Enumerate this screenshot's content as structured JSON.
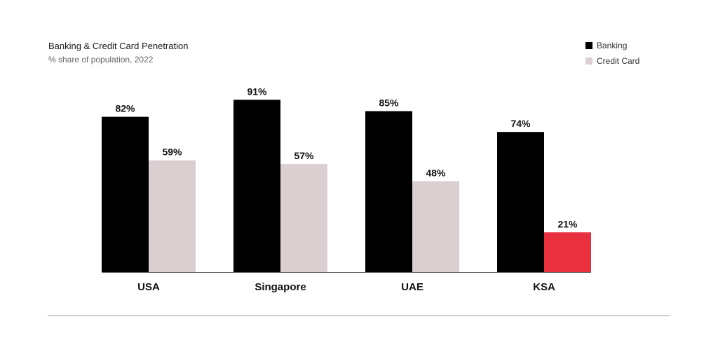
{
  "colors": {
    "banking": "#000000",
    "credit_card": "#dccfd2",
    "highlight": "#e8303f",
    "axis": "#555555",
    "rule": "#9a9a9a"
  },
  "chart_data": {
    "type": "bar",
    "title": "Banking & Credit Card Penetration",
    "subtitle": "% share of population, 2022",
    "categories": [
      "USA",
      "Singapore",
      "UAE",
      "KSA"
    ],
    "series": [
      {
        "name": "Banking",
        "values": [
          82,
          91,
          85,
          74
        ],
        "labels": [
          "82%",
          "91%",
          "85%",
          "74%"
        ]
      },
      {
        "name": "Credit Card",
        "values": [
          59,
          57,
          48,
          21
        ],
        "labels": [
          "59%",
          "57%",
          "48%",
          "21%"
        ]
      }
    ],
    "highlight": {
      "series": "Credit Card",
      "category": "KSA",
      "color": "#e8303f"
    },
    "ylim": [
      0,
      100
    ],
    "grid": false,
    "legend": "top-right"
  }
}
